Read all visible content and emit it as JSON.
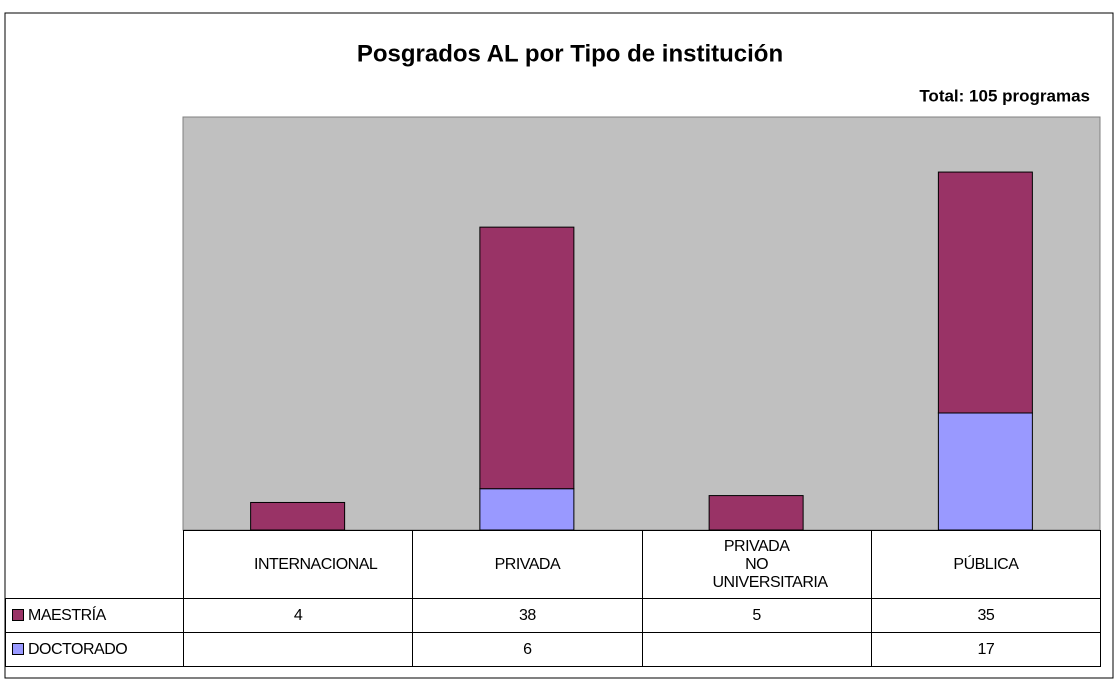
{
  "chart_data": {
    "type": "stacked_bar",
    "title": "Posgrados AL por Tipo de institución",
    "subtitle": "Total: 105 programas",
    "categories": [
      "INTERNACIONAL",
      "PRIVADA",
      "PRIVADA NO UNIVERSITARIA",
      "PÚBLICA"
    ],
    "series": [
      {
        "name": "MAESTRÍA",
        "color": "#993366",
        "values": [
          4,
          38,
          5,
          35
        ]
      },
      {
        "name": "DOCTORADO",
        "color": "#9999ff",
        "values": [
          null,
          6,
          null,
          17
        ]
      }
    ],
    "ylim": [
      0,
      60
    ]
  }
}
